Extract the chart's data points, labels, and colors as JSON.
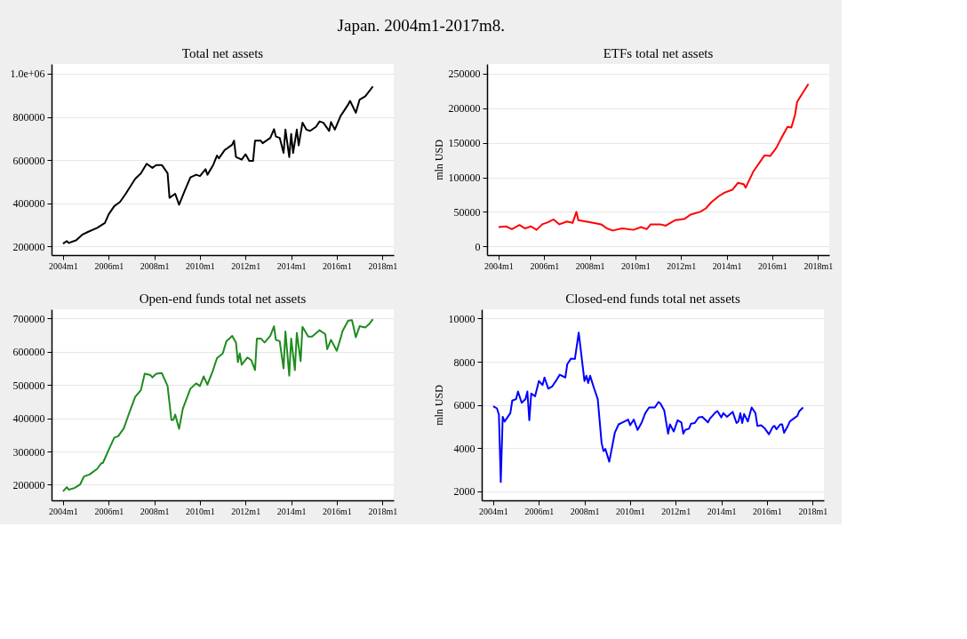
{
  "chart_data": [
    {
      "type": "line",
      "title": "Total net assets",
      "annotations": [
        "Japan. 2004m1-2017m8."
      ],
      "grid": "y",
      "marker": "none",
      "line_style": "solid",
      "xlim": [
        "2003-07",
        "2018-07"
      ],
      "xticks": [
        {
          "value": "2004-01",
          "label": "2004m1"
        },
        {
          "value": "2006-01",
          "label": "2006m1"
        },
        {
          "value": "2008-01",
          "label": "2008m1"
        },
        {
          "value": "2010-01",
          "label": "2010m1"
        },
        {
          "value": "2012-01",
          "label": "2012m1"
        },
        {
          "value": "2014-01",
          "label": "2014m1"
        },
        {
          "value": "2016-01",
          "label": "2016m1"
        },
        {
          "value": "2018-01",
          "label": "2018m1"
        }
      ],
      "ylim": [
        160000,
        1045000
      ],
      "yticks": [
        200000,
        400000,
        600000,
        800000,
        {
          "value": 1000000,
          "label": "1.0e+06"
        }
      ],
      "series": [
        {
          "color": "#000000",
          "x": [
            "2004-01",
            "2004-03",
            "2004-04",
            "2004-08",
            "2004-11",
            "2005-02",
            "2005-07",
            "2005-11",
            "2006-01",
            "2006-04",
            "2006-07",
            "2006-10",
            "2007-03",
            "2007-06",
            "2007-09",
            "2007-12",
            "2008-02",
            "2008-05",
            "2008-08",
            "2008-09",
            "2008-12",
            "2009-02",
            "2009-05",
            "2009-08",
            "2009-11",
            "2010-01",
            "2010-04",
            "2010-05",
            "2010-08",
            "2010-10",
            "2010-11",
            "2011-02",
            "2011-06",
            "2011-07",
            "2011-08",
            "2011-11",
            "2012-01",
            "2012-03",
            "2012-05",
            "2012-06",
            "2012-09",
            "2012-10",
            "2013-02",
            "2013-04",
            "2013-05",
            "2013-07",
            "2013-09",
            "2013-10",
            "2013-12",
            "2014-01",
            "2014-02",
            "2014-04",
            "2014-05",
            "2014-07",
            "2014-09",
            "2014-11",
            "2015-02",
            "2015-04",
            "2015-06",
            "2015-09",
            "2015-10",
            "2015-12",
            "2016-03",
            "2016-04",
            "2016-07",
            "2016-08",
            "2016-11",
            "2017-01",
            "2017-04",
            "2017-06",
            "2017-08"
          ],
          "values": [
            213000,
            225000,
            216000,
            229000,
            254000,
            267000,
            286000,
            309000,
            349000,
            387000,
            406000,
            444000,
            513000,
            539000,
            583000,
            564000,
            577000,
            577000,
            539000,
            425000,
            444000,
            393000,
            457000,
            520000,
            532000,
            526000,
            558000,
            532000,
            577000,
            621000,
            608000,
            646000,
            671000,
            690000,
            614000,
            602000,
            627000,
            596000,
            596000,
            690000,
            690000,
            678000,
            703000,
            743000,
            709000,
            703000,
            633000,
            741000,
            614000,
            721000,
            633000,
            741000,
            668000,
            773000,
            741000,
            735000,
            754000,
            779000,
            773000,
            735000,
            776000,
            741000,
            804000,
            817000,
            857000,
            874000,
            819000,
            880000,
            895000,
            918000,
            941000
          ]
        }
      ]
    },
    {
      "type": "line",
      "title": "ETFs total net assets",
      "ylabel": "mln USD",
      "grid": "y",
      "marker": "none",
      "line_style": "solid",
      "xlim": [
        "2003-07",
        "2018-07"
      ],
      "xticks": [
        {
          "value": "2004-01",
          "label": "2004m1"
        },
        {
          "value": "2006-01",
          "label": "2006m1"
        },
        {
          "value": "2008-01",
          "label": "2008m1"
        },
        {
          "value": "2010-01",
          "label": "2010m1"
        },
        {
          "value": "2012-01",
          "label": "2012m1"
        },
        {
          "value": "2014-01",
          "label": "2014m1"
        },
        {
          "value": "2016-01",
          "label": "2016m1"
        },
        {
          "value": "2018-01",
          "label": "2018m1"
        }
      ],
      "ylim": [
        -12500,
        264000
      ],
      "yticks": [
        0,
        50000,
        100000,
        150000,
        200000,
        250000
      ],
      "series": [
        {
          "color": "#ff0000",
          "x": [
            "2004-01",
            "2004-05",
            "2004-08",
            "2004-12",
            "2005-03",
            "2005-06",
            "2005-09",
            "2005-12",
            "2006-03",
            "2006-06",
            "2006-09",
            "2007-01",
            "2007-04",
            "2007-06",
            "2007-07",
            "2008-01",
            "2008-07",
            "2008-10",
            "2009-01",
            "2009-06",
            "2009-12",
            "2010-04",
            "2010-07",
            "2010-09",
            "2011-02",
            "2011-05",
            "2011-10",
            "2012-03",
            "2012-06",
            "2012-11",
            "2013-02",
            "2013-05",
            "2013-09",
            "2013-12",
            "2014-04",
            "2014-07",
            "2014-10",
            "2014-11",
            "2015-03",
            "2015-07",
            "2015-09",
            "2015-12",
            "2016-03",
            "2016-06",
            "2016-09",
            "2016-11",
            "2017-01",
            "2017-02",
            "2017-05",
            "2017-08"
          ],
          "values": [
            28000,
            29000,
            25000,
            31000,
            26000,
            29000,
            24000,
            32000,
            35000,
            39000,
            32000,
            36000,
            34000,
            50000,
            38000,
            35000,
            32000,
            26000,
            23000,
            26000,
            24000,
            28000,
            25000,
            32000,
            32000,
            30000,
            38000,
            40000,
            46000,
            50000,
            55000,
            64000,
            73000,
            78000,
            82000,
            92000,
            90000,
            85000,
            108000,
            124000,
            132000,
            131000,
            142000,
            158000,
            173000,
            172000,
            191000,
            209000,
            222000,
            235000
          ]
        }
      ]
    },
    {
      "type": "line",
      "title": "Open-end funds total net assets",
      "grid": "y",
      "marker": "none",
      "line_style": "solid",
      "xlim": [
        "2003-07",
        "2018-07"
      ],
      "xticks": [
        {
          "value": "2004-01",
          "label": "2004m1"
        },
        {
          "value": "2006-01",
          "label": "2006m1"
        },
        {
          "value": "2008-01",
          "label": "2008m1"
        },
        {
          "value": "2010-01",
          "label": "2010m1"
        },
        {
          "value": "2012-01",
          "label": "2012m1"
        },
        {
          "value": "2014-01",
          "label": "2014m1"
        },
        {
          "value": "2016-01",
          "label": "2016m1"
        },
        {
          "value": "2018-01",
          "label": "2018m1"
        }
      ],
      "ylim": [
        153000,
        728000
      ],
      "yticks": [
        200000,
        300000,
        400000,
        500000,
        600000,
        700000
      ],
      "series": [
        {
          "color": "#1e8c1e",
          "x": [
            "2004-01",
            "2004-03",
            "2004-04",
            "2004-07",
            "2004-10",
            "2004-12",
            "2005-03",
            "2005-07",
            "2005-09",
            "2005-10",
            "2006-01",
            "2006-04",
            "2006-06",
            "2006-09",
            "2006-12",
            "2007-03",
            "2007-06",
            "2007-08",
            "2007-11",
            "2007-12",
            "2008-02",
            "2008-05",
            "2008-08",
            "2008-10",
            "2008-11",
            "2008-12",
            "2009-02",
            "2009-04",
            "2009-08",
            "2009-11",
            "2010-01",
            "2010-03",
            "2010-05",
            "2010-08",
            "2010-10",
            "2011-01",
            "2011-03",
            "2011-06",
            "2011-08",
            "2011-09",
            "2011-10",
            "2011-11",
            "2012-02",
            "2012-04",
            "2012-06",
            "2012-07",
            "2012-09",
            "2012-11",
            "2013-02",
            "2013-04",
            "2013-05",
            "2013-07",
            "2013-09",
            "2013-10",
            "2013-12",
            "2014-01",
            "2014-03",
            "2014-04",
            "2014-06",
            "2014-07",
            "2014-10",
            "2014-12",
            "2015-04",
            "2015-07",
            "2015-08",
            "2015-10",
            "2016-01",
            "2016-03",
            "2016-04",
            "2016-07",
            "2016-09",
            "2016-11",
            "2017-01",
            "2017-04",
            "2017-06",
            "2017-08"
          ],
          "values": [
            180000,
            193000,
            185000,
            190000,
            201000,
            225000,
            231000,
            248000,
            264000,
            266000,
            305000,
            342000,
            346000,
            370000,
            419000,
            464000,
            485000,
            534000,
            530000,
            523000,
            534000,
            536000,
            497000,
            395000,
            395000,
            411000,
            368000,
            428000,
            489000,
            505000,
            497000,
            526000,
            501000,
            546000,
            581000,
            595000,
            632000,
            648000,
            628000,
            569000,
            595000,
            561000,
            583000,
            575000,
            545000,
            640000,
            640000,
            628000,
            648000,
            677000,
            636000,
            632000,
            550000,
            661000,
            528000,
            640000,
            545000,
            657000,
            572000,
            675000,
            646000,
            646000,
            665000,
            653000,
            608000,
            636000,
            603000,
            640000,
            662000,
            694000,
            695000,
            644000,
            677000,
            673000,
            683000,
            698000
          ]
        }
      ]
    },
    {
      "type": "line",
      "title": "Closed-end funds total net assets",
      "ylabel": "mln USD",
      "grid": "y",
      "marker": "none",
      "line_style": "solid",
      "xlim": [
        "2003-07",
        "2018-07"
      ],
      "xticks": [
        {
          "value": "2004-01",
          "label": "2004m1"
        },
        {
          "value": "2006-01",
          "label": "2006m1"
        },
        {
          "value": "2008-01",
          "label": "2008m1"
        },
        {
          "value": "2010-01",
          "label": "2010m1"
        },
        {
          "value": "2012-01",
          "label": "2012m1"
        },
        {
          "value": "2014-01",
          "label": "2014m1"
        },
        {
          "value": "2016-01",
          "label": "2016m1"
        },
        {
          "value": "2018-01",
          "label": "2018m1"
        }
      ],
      "ylim": [
        1580,
        10430
      ],
      "yticks": [
        2000,
        4000,
        6000,
        8000,
        10000
      ],
      "series": [
        {
          "color": "#0000ff",
          "x": [
            "2004-01",
            "2004-03",
            "2004-04",
            "2004-05",
            "2004-06",
            "2004-07",
            "2004-10",
            "2004-11",
            "2005-01",
            "2005-02",
            "2005-04",
            "2005-06",
            "2005-07",
            "2005-08",
            "2005-09",
            "2005-11",
            "2006-01",
            "2006-03",
            "2006-04",
            "2006-06",
            "2006-08",
            "2006-10",
            "2006-12",
            "2007-03",
            "2007-04",
            "2007-06",
            "2007-08",
            "2007-10",
            "2008-01",
            "2008-02",
            "2008-03",
            "2008-04",
            "2008-06",
            "2008-08",
            "2008-10",
            "2008-11",
            "2008-12",
            "2009-02",
            "2009-05",
            "2009-07",
            "2009-09",
            "2009-12",
            "2010-01",
            "2010-03",
            "2010-05",
            "2010-07",
            "2010-09",
            "2010-11",
            "2011-02",
            "2011-04",
            "2011-05",
            "2011-07",
            "2011-09",
            "2011-10",
            "2011-12",
            "2012-02",
            "2012-04",
            "2012-05",
            "2012-06",
            "2012-08",
            "2012-09",
            "2012-11",
            "2013-01",
            "2013-03",
            "2013-06",
            "2013-07",
            "2013-10",
            "2013-11",
            "2014-01",
            "2014-02",
            "2014-04",
            "2014-07",
            "2014-09",
            "2014-10",
            "2014-11",
            "2014-12",
            "2015-01",
            "2015-03",
            "2015-05",
            "2015-07",
            "2015-08",
            "2015-10",
            "2015-12",
            "2016-02",
            "2016-04",
            "2016-05",
            "2016-06",
            "2016-08",
            "2016-09",
            "2016-10",
            "2016-12",
            "2017-01",
            "2017-03",
            "2017-05",
            "2017-06",
            "2017-08"
          ],
          "values": [
            5940,
            5840,
            5550,
            2430,
            5450,
            5230,
            5620,
            6200,
            6270,
            6620,
            6100,
            6270,
            6620,
            5290,
            6530,
            6400,
            7110,
            6920,
            7270,
            6750,
            6850,
            7110,
            7400,
            7270,
            7890,
            8150,
            8130,
            9350,
            7110,
            7350,
            7010,
            7350,
            6790,
            6270,
            4250,
            3860,
            3960,
            3370,
            4710,
            5100,
            5190,
            5320,
            5060,
            5320,
            4840,
            5160,
            5620,
            5880,
            5880,
            6140,
            6070,
            5750,
            4670,
            5100,
            4770,
            5290,
            5190,
            4670,
            4840,
            4900,
            5130,
            5160,
            5420,
            5450,
            5190,
            5360,
            5660,
            5710,
            5420,
            5620,
            5450,
            5680,
            5160,
            5230,
            5620,
            5160,
            5580,
            5230,
            5880,
            5620,
            5030,
            5060,
            4900,
            4640,
            4970,
            5030,
            4870,
            5100,
            5100,
            4710,
            5030,
            5230,
            5360,
            5490,
            5710,
            5880
          ]
        }
      ]
    }
  ]
}
